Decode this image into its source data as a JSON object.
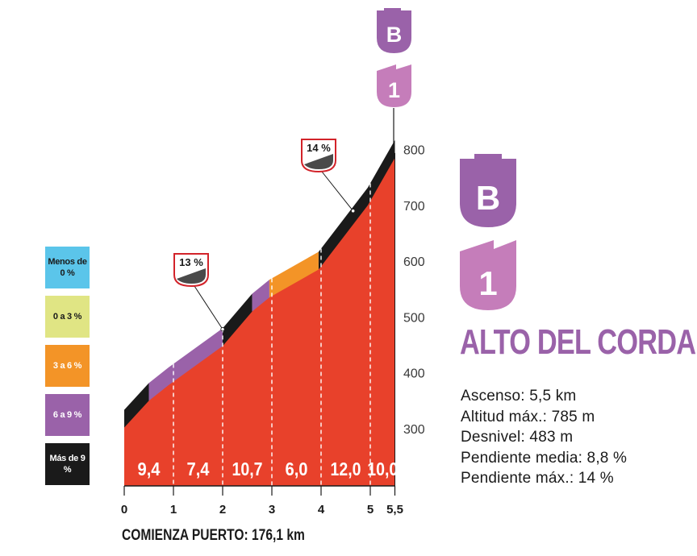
{
  "colors": {
    "fill": "#e8412b",
    "black": "#1a1a1a",
    "purple": "#9a62a9",
    "orange": "#f39427",
    "pink": "#c57dba",
    "dash": "#ffffff"
  },
  "legend": [
    {
      "label": "Menos de 0 %",
      "color": "#5bc5ea"
    },
    {
      "label": "0 a 3 %",
      "color": "#e0e584"
    },
    {
      "label": "3 a 6 %",
      "color": "#f39427"
    },
    {
      "label": "6 a 9 %",
      "color": "#9a62a9"
    },
    {
      "label": "Más de 9 %",
      "color": "#1a1a1a"
    }
  ],
  "badges": {
    "category_letter": "B",
    "category_number": "1"
  },
  "climb": {
    "title": "ALTO DEL CORDAL",
    "stats": [
      "Ascenso: 5,5 km",
      "Altitud máx.: 785 m",
      "Desnivel: 483 m",
      "Pendiente media: 8,8 %",
      "Pendiente máx.: 14 %"
    ]
  },
  "start_label": "COMIENZA PUERTO: 176,1 km",
  "chart_data": {
    "type": "area",
    "title": "ALTO DEL CORDAL",
    "xlabel": "",
    "ylabel": "",
    "x_ticks": [
      "0",
      "1",
      "2",
      "3",
      "4",
      "5",
      "5,5"
    ],
    "x_tick_values": [
      0,
      1,
      2,
      3,
      4,
      5,
      5.5
    ],
    "y_ticks": [
      "300",
      "400",
      "500",
      "600",
      "700",
      "800"
    ],
    "y_tick_values": [
      300,
      400,
      500,
      600,
      700,
      800
    ],
    "xlim": [
      0,
      5.5
    ],
    "ylim": [
      300,
      800
    ],
    "profile": {
      "x": [
        0,
        0.5,
        0.9,
        2.0,
        2.6,
        2.95,
        3.95,
        4.95,
        5.5
      ],
      "y": [
        302,
        350,
        378,
        448,
        510,
        535,
        585,
        700,
        785
      ]
    },
    "band_segments": [
      {
        "x0": 0,
        "x1": 0.5,
        "color": "#1a1a1a"
      },
      {
        "x0": 0.5,
        "x1": 2.0,
        "color": "#9a62a9"
      },
      {
        "x0": 2.0,
        "x1": 2.6,
        "color": "#1a1a1a"
      },
      {
        "x0": 2.6,
        "x1": 2.95,
        "color": "#9a62a9"
      },
      {
        "x0": 2.95,
        "x1": 3.95,
        "color": "#f39427"
      },
      {
        "x0": 3.95,
        "x1": 5.5,
        "color": "#1a1a1a"
      }
    ],
    "gradient_labels": [
      {
        "x_mid": 0.5,
        "label": "9,4"
      },
      {
        "x_mid": 1.5,
        "label": "7,4"
      },
      {
        "x_mid": 2.5,
        "label": "10,7"
      },
      {
        "x_mid": 3.5,
        "label": "6,0"
      },
      {
        "x_mid": 4.5,
        "label": "12,0"
      },
      {
        "x_mid": 5.25,
        "label": "10,0"
      }
    ],
    "annotations": [
      {
        "label": "13 %",
        "x": 2.0,
        "y": 478
      },
      {
        "label": "14 %",
        "x": 4.65,
        "y": 690
      }
    ]
  }
}
